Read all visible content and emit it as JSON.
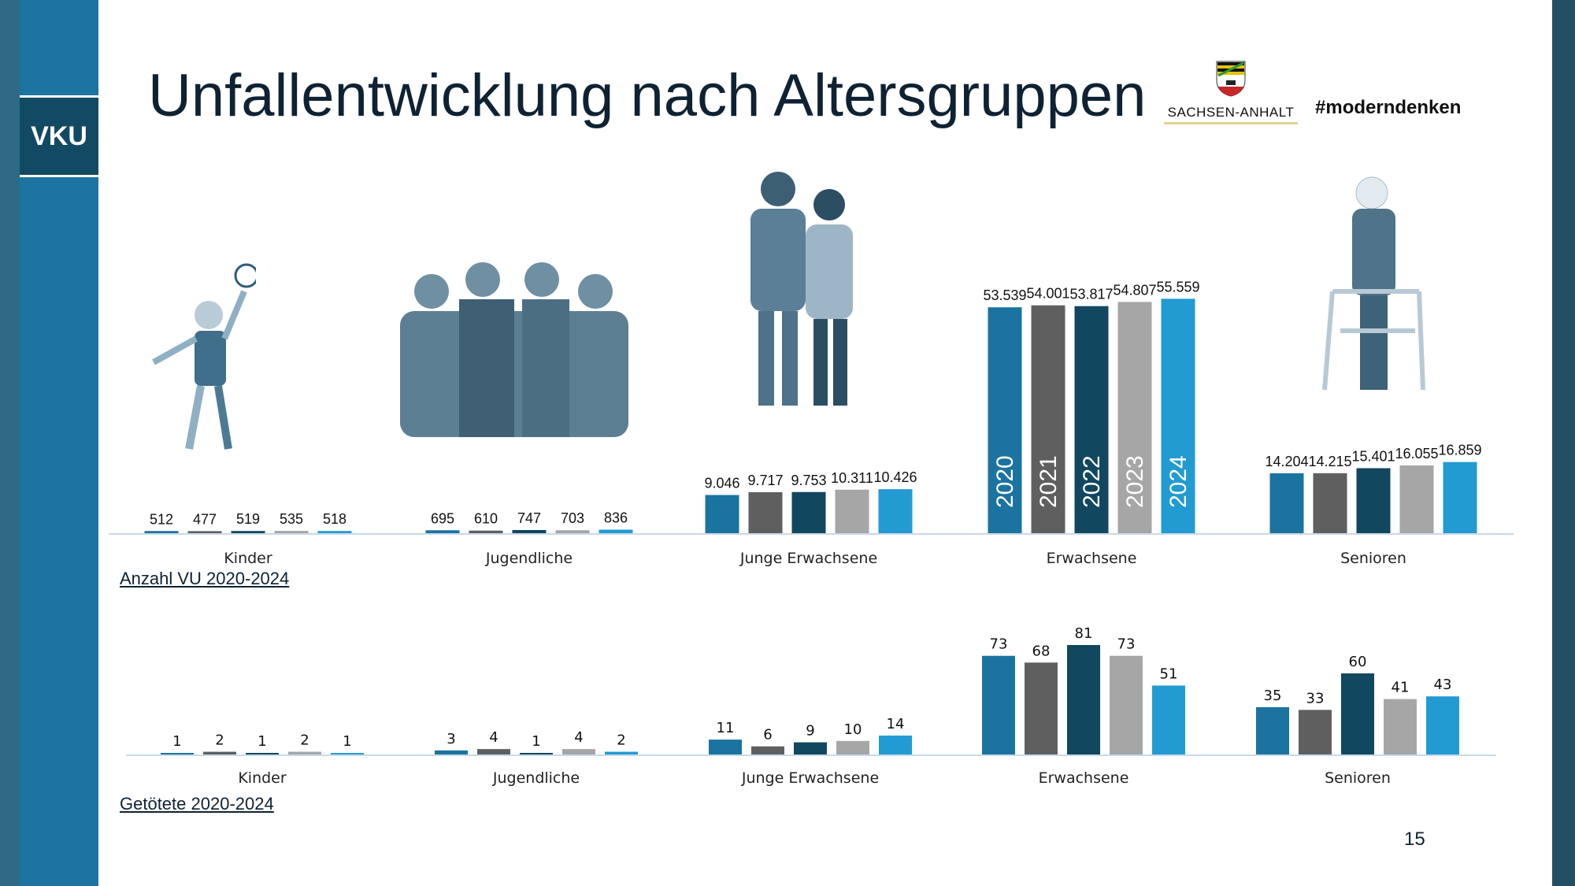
{
  "sidebar": {
    "logo_text": "VKU"
  },
  "header": {
    "title": "Unfallentwicklung nach Altersgruppen",
    "state_logo_text": "SACHSEN-ANHALT",
    "hashtag": "#moderndenken"
  },
  "page_number": "15",
  "colors": {
    "2020": "#1b73a0",
    "2021": "#5f5f5f",
    "2022": "#11475f",
    "2023": "#a6a6a6",
    "2024": "#229bd2",
    "axis": "#c9d9e8"
  },
  "chart_data": [
    {
      "type": "bar",
      "title": "Anzahl VU 2020-2024",
      "categories": [
        "Kinder",
        "Jugendliche",
        "Junge  Erwachsene",
        "Erwachsene",
        "Senioren"
      ],
      "series_labels": [
        "2020",
        "2021",
        "2022",
        "2023",
        "2024"
      ],
      "series": [
        {
          "name": "2020",
          "values": [
            512,
            695,
            9046,
            53539,
            14204
          ]
        },
        {
          "name": "2021",
          "values": [
            477,
            610,
            9717,
            54001,
            14215
          ]
        },
        {
          "name": "2022",
          "values": [
            519,
            747,
            9753,
            53817,
            15401
          ]
        },
        {
          "name": "2023",
          "values": [
            535,
            703,
            10311,
            54807,
            16055
          ]
        },
        {
          "name": "2024",
          "values": [
            518,
            836,
            10426,
            55559,
            16859
          ]
        }
      ],
      "value_labels": [
        [
          "512",
          "477",
          "519",
          "535",
          "518"
        ],
        [
          "695",
          "610",
          "747",
          "703",
          "836"
        ],
        [
          "9.046",
          "9.717",
          "9.753",
          "10.311",
          "10.426"
        ],
        [
          "53.539",
          "54.001",
          "53.817",
          "54.807",
          "55.559"
        ],
        [
          "14.204",
          "14.215",
          "15.401",
          "16.055",
          "16.859"
        ]
      ],
      "ylim": [
        0,
        56000
      ],
      "grid": false
    },
    {
      "type": "bar",
      "title": "Getötete 2020-2024",
      "categories": [
        "Kinder",
        "Jugendliche",
        "Junge  Erwachsene",
        "Erwachsene",
        "Senioren"
      ],
      "series": [
        {
          "name": "2020",
          "values": [
            1,
            3,
            11,
            73,
            35
          ]
        },
        {
          "name": "2021",
          "values": [
            2,
            4,
            6,
            68,
            33
          ]
        },
        {
          "name": "2022",
          "values": [
            1,
            1,
            9,
            81,
            60
          ]
        },
        {
          "name": "2023",
          "values": [
            2,
            4,
            10,
            73,
            41
          ]
        },
        {
          "name": "2024",
          "values": [
            1,
            2,
            14,
            51,
            43
          ]
        }
      ],
      "ylim": [
        0,
        81
      ],
      "grid": false
    }
  ]
}
